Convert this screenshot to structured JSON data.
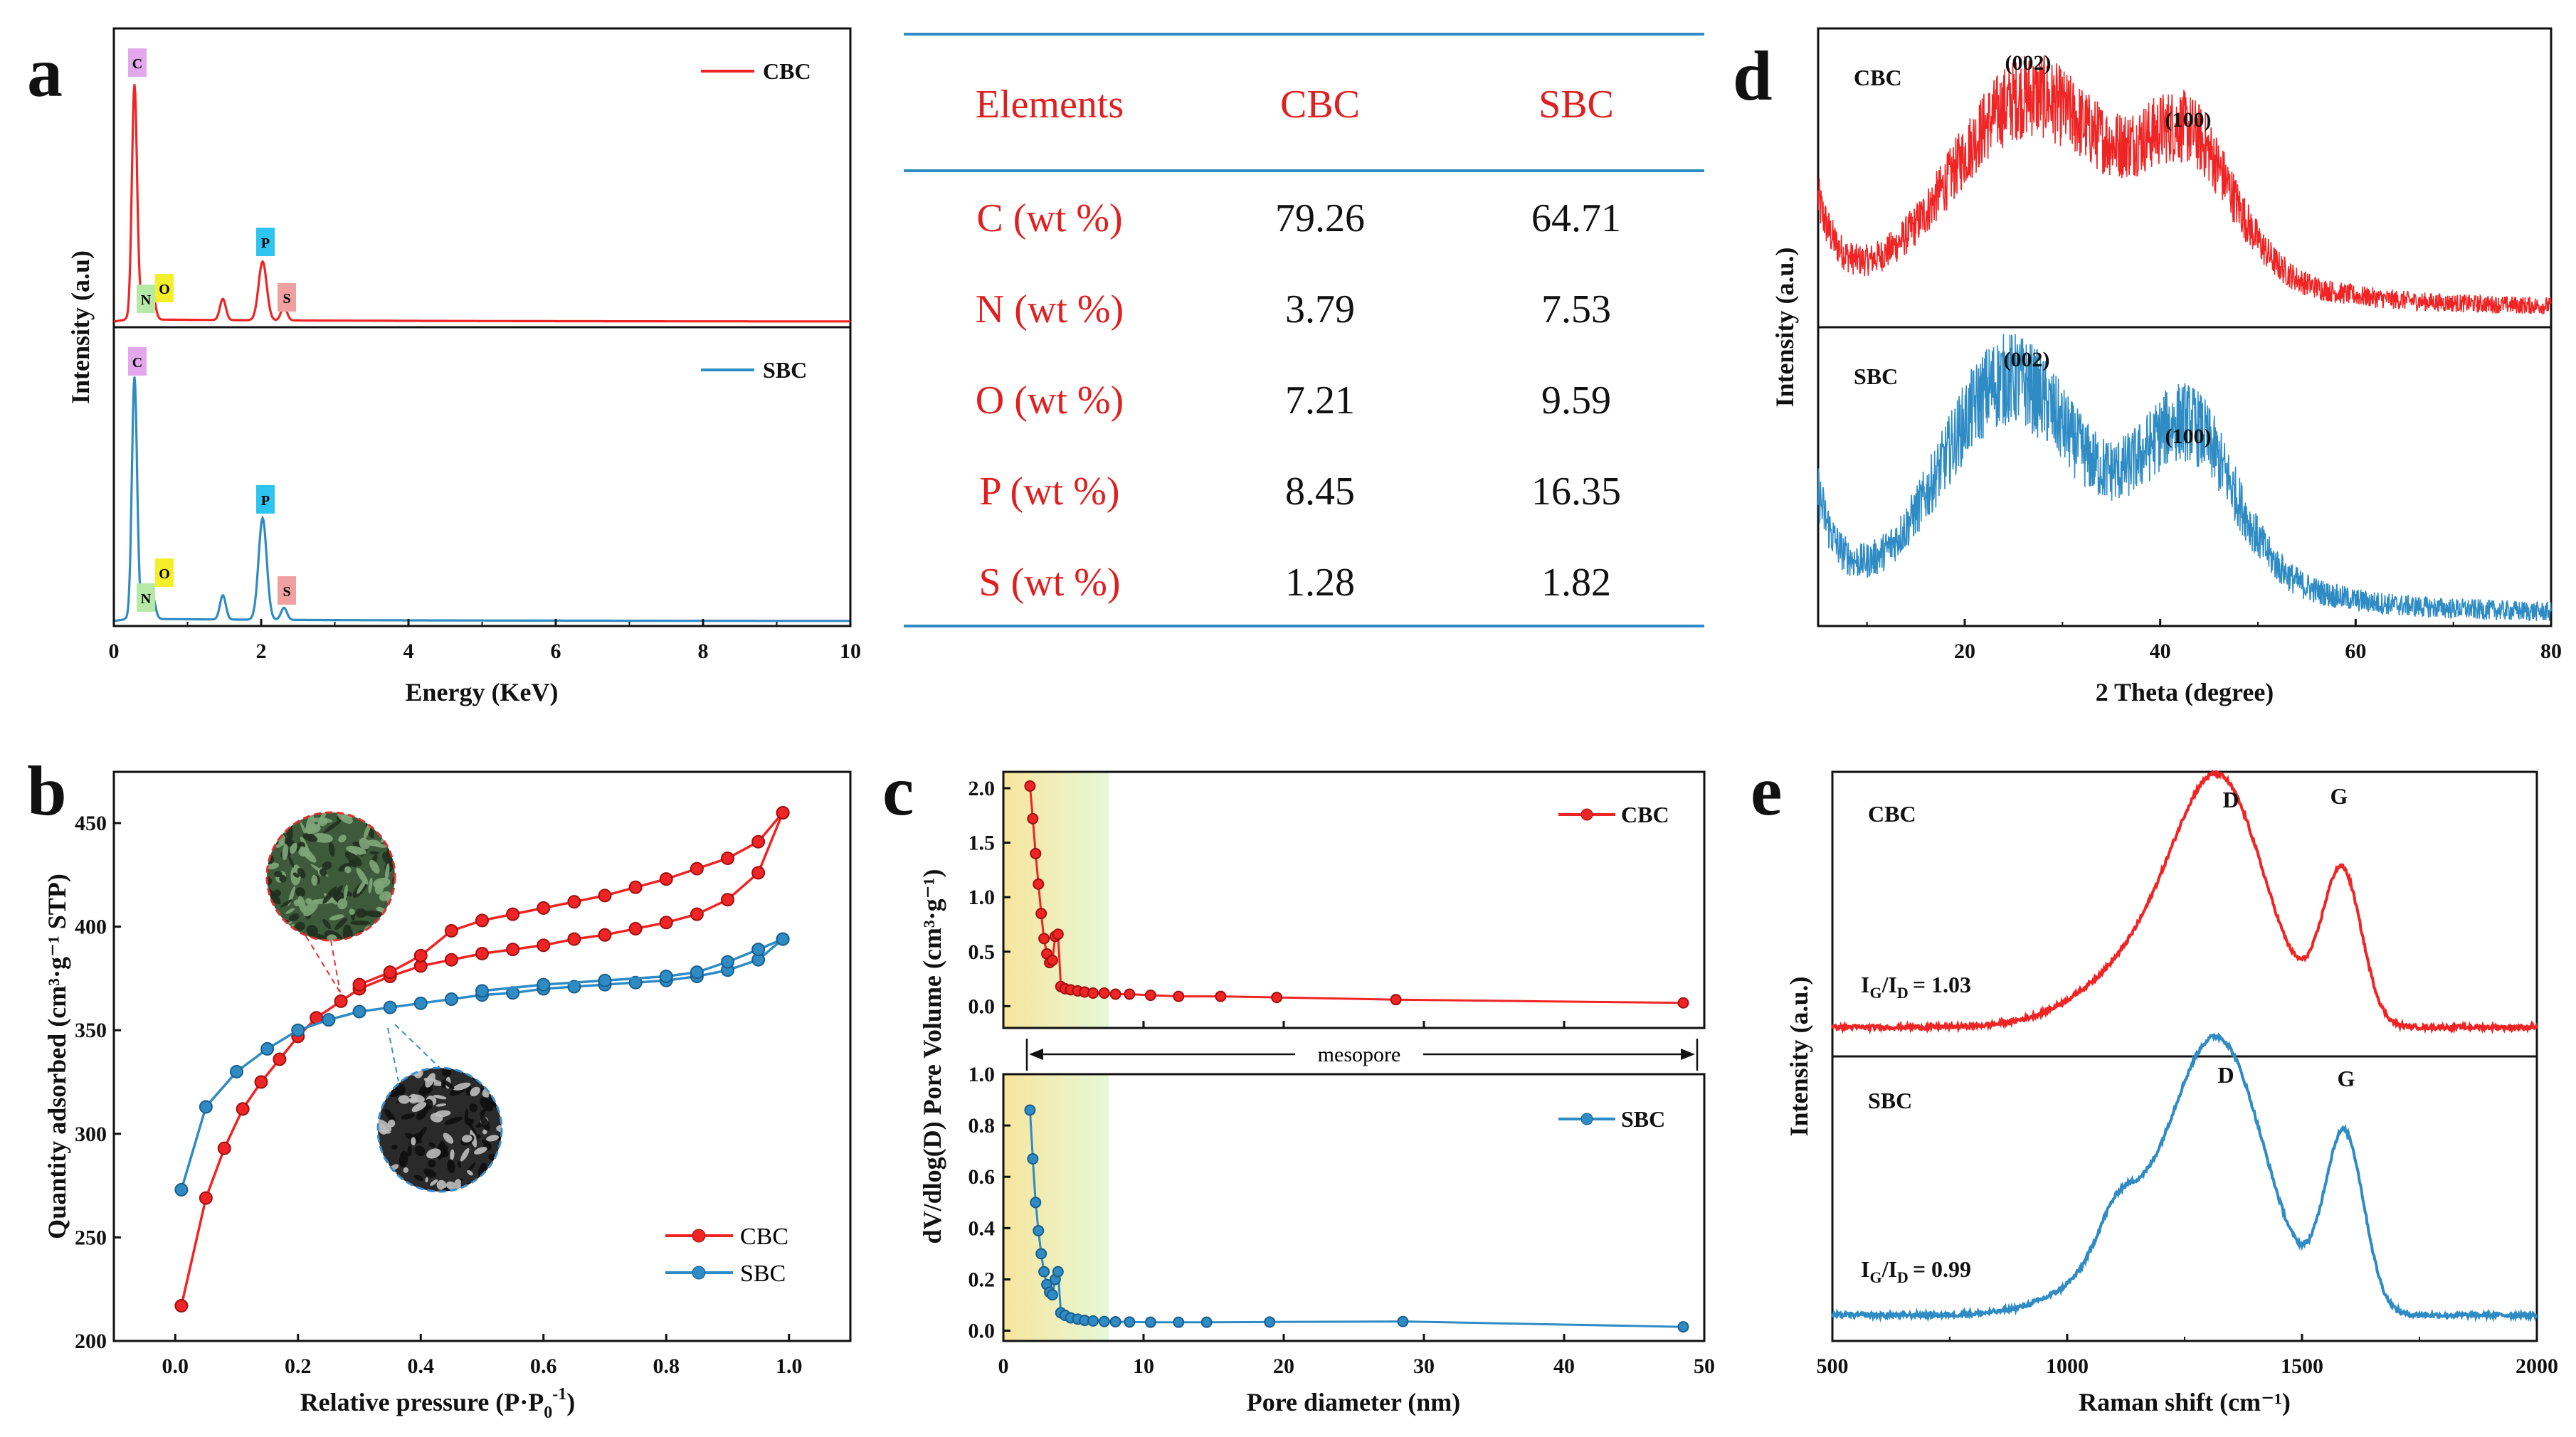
{
  "colors": {
    "cbc": "#f02424",
    "sbc": "#2e8bc4",
    "table_red": "#e02020",
    "rule": "#2e8bc4"
  },
  "panels": {
    "a": {
      "label": "a",
      "xlabel": "Energy (KeV)",
      "ylabel": "Intensity (a.u)",
      "xlim": [
        0,
        10
      ],
      "xticks": [
        "0",
        "2",
        "4",
        "6",
        "8",
        "10"
      ],
      "legend_cbc": "CBC",
      "legend_sbc": "SBC",
      "element_tags": [
        "C",
        "N",
        "O",
        "P",
        "S"
      ]
    },
    "table": {
      "headers": [
        "Elements",
        "CBC",
        "SBC"
      ],
      "rows": [
        [
          "C (wt %)",
          "79.26",
          "64.71"
        ],
        [
          "N (wt %)",
          "3.79",
          "7.53"
        ],
        [
          "O (wt %)",
          "7.21",
          "9.59"
        ],
        [
          "P (wt %)",
          "8.45",
          "16.35"
        ],
        [
          "S (wt %)",
          "1.28",
          "1.82"
        ]
      ]
    },
    "d": {
      "label": "d",
      "xlabel": "2 Theta (degree)",
      "ylabel": "Intensity (a.u.)",
      "xticks": [
        "20",
        "40",
        "60",
        "80"
      ],
      "cbc": "CBC",
      "sbc": "SBC",
      "peak1": "(002)",
      "peak2": "(100)"
    },
    "b": {
      "label": "b",
      "xlabel": "Relative pressure (P·P",
      "xlabel_sub": "0",
      "xlabel_sup": "-1",
      "xlabel_end": ")",
      "ylabel": "Quantity adsorbed (cm³·g⁻¹ STP)",
      "xticks": [
        "0.0",
        "0.2",
        "0.4",
        "0.6",
        "0.8",
        "1.0"
      ],
      "yticks": [
        "200",
        "250",
        "300",
        "350",
        "400",
        "450"
      ],
      "legend_cbc": "CBC",
      "legend_sbc": "SBC"
    },
    "c": {
      "label": "c",
      "xlabel": "Pore diameter (nm)",
      "ylabel": "dV/dlog(D) Pore Volume (cm³·g⁻¹)",
      "xticks": [
        "0",
        "10",
        "20",
        "30",
        "40",
        "50"
      ],
      "yticks_top": [
        "0.0",
        "0.5",
        "1.0",
        "1.5",
        "2.0"
      ],
      "yticks_bottom": [
        "0.0",
        "0.2",
        "0.4",
        "0.6",
        "0.8",
        "1.0"
      ],
      "legend_cbc": "CBC",
      "legend_sbc": "SBC",
      "mesopore": "mesopore"
    },
    "e": {
      "label": "e",
      "xlabel": "Raman shift (cm⁻¹)",
      "ylabel": "Intensity (a.u.)",
      "xticks": [
        "500",
        "1000",
        "1500",
        "2000"
      ],
      "cbc": "CBC",
      "sbc": "SBC",
      "d_peak": "D",
      "g_peak": "G",
      "ratio_cbc": "= 1.03",
      "ratio_sbc": "= 0.99",
      "ratio_prefix": "I",
      "ratio_g": "G",
      "ratio_sep": "/I",
      "ratio_d": "D"
    }
  },
  "chart_data": [
    {
      "panel": "a",
      "type": "line",
      "title": "",
      "xlabel": "Energy (KeV)",
      "ylabel": "Intensity (a.u)",
      "xlim": [
        0,
        10
      ],
      "series": [
        {
          "name": "CBC",
          "peaks": [
            {
              "x": 0.28,
              "y": 1.0
            },
            {
              "x": 0.39,
              "y": 0.08
            },
            {
              "x": 0.52,
              "y": 0.12
            },
            {
              "x": 1.48,
              "y": 0.09
            },
            {
              "x": 2.02,
              "y": 0.25
            },
            {
              "x": 2.31,
              "y": 0.06
            }
          ]
        },
        {
          "name": "SBC",
          "peaks": [
            {
              "x": 0.28,
              "y": 1.0
            },
            {
              "x": 0.39,
              "y": 0.05
            },
            {
              "x": 0.52,
              "y": 0.1
            },
            {
              "x": 1.48,
              "y": 0.1
            },
            {
              "x": 2.02,
              "y": 0.42
            },
            {
              "x": 2.31,
              "y": 0.05
            }
          ]
        }
      ]
    },
    {
      "panel": "b",
      "type": "line",
      "xlabel": "Relative pressure (P·P0-1)",
      "ylabel": "Quantity adsorbed (cm3·g-1 STP)",
      "xlim": [
        -0.1,
        1.1
      ],
      "ylim": [
        200,
        470
      ],
      "series": [
        {
          "name": "CBC adsorption",
          "x": [
            0.01,
            0.05,
            0.08,
            0.11,
            0.14,
            0.17,
            0.2,
            0.23,
            0.27,
            0.3,
            0.35,
            0.4,
            0.45,
            0.5,
            0.55,
            0.6,
            0.65,
            0.7,
            0.75,
            0.8,
            0.85,
            0.9,
            0.95,
            0.99
          ],
          "y": [
            217,
            269,
            293,
            312,
            325,
            336,
            347,
            356,
            364,
            370,
            376,
            381,
            384,
            387,
            389,
            391,
            394,
            396,
            399,
            402,
            406,
            413,
            426,
            455
          ]
        },
        {
          "name": "CBC desorption",
          "x": [
            0.99,
            0.95,
            0.9,
            0.85,
            0.8,
            0.75,
            0.7,
            0.65,
            0.6,
            0.55,
            0.5,
            0.45,
            0.4,
            0.35,
            0.3
          ],
          "y": [
            455,
            441,
            433,
            428,
            423,
            419,
            415,
            412,
            409,
            406,
            403,
            398,
            386,
            378,
            372
          ]
        },
        {
          "name": "SBC adsorption",
          "x": [
            0.01,
            0.05,
            0.1,
            0.15,
            0.2,
            0.25,
            0.3,
            0.35,
            0.4,
            0.45,
            0.5,
            0.55,
            0.6,
            0.65,
            0.7,
            0.75,
            0.8,
            0.85,
            0.9,
            0.95,
            0.99
          ],
          "y": [
            273,
            313,
            330,
            341,
            350,
            355,
            359,
            361,
            363,
            365,
            367,
            368,
            370,
            371,
            372,
            373,
            374,
            376,
            379,
            384,
            394
          ]
        },
        {
          "name": "SBC desorption",
          "x": [
            0.99,
            0.95,
            0.9,
            0.85,
            0.8,
            0.7,
            0.6,
            0.5
          ],
          "y": [
            394,
            389,
            383,
            378,
            376,
            374,
            372,
            369
          ]
        }
      ]
    },
    {
      "panel": "c",
      "type": "line",
      "xlabel": "Pore diameter (nm)",
      "ylabel": "dV/dlog(D) Pore Volume (cm3·g-1)",
      "xlim": [
        0,
        50
      ],
      "series": [
        {
          "name": "CBC",
          "ylim": [
            -0.2,
            2.15
          ],
          "x": [
            1.9,
            2.1,
            2.3,
            2.5,
            2.7,
            2.9,
            3.1,
            3.3,
            3.5,
            3.7,
            3.9,
            4.1,
            4.4,
            4.8,
            5.3,
            5.8,
            6.4,
            7.2,
            8.0,
            9.0,
            10.5,
            12.5,
            15.5,
            19.5,
            28.0,
            48.5
          ],
          "y": [
            2.02,
            1.72,
            1.4,
            1.12,
            0.85,
            0.62,
            0.48,
            0.4,
            0.42,
            0.64,
            0.66,
            0.18,
            0.16,
            0.15,
            0.14,
            0.13,
            0.12,
            0.12,
            0.11,
            0.11,
            0.1,
            0.09,
            0.09,
            0.08,
            0.06,
            0.03
          ]
        },
        {
          "name": "SBC",
          "ylim": [
            -0.04,
            1.0
          ],
          "x": [
            1.9,
            2.1,
            2.3,
            2.5,
            2.7,
            2.9,
            3.1,
            3.3,
            3.5,
            3.7,
            3.9,
            4.1,
            4.4,
            4.8,
            5.3,
            5.8,
            6.4,
            7.2,
            8.0,
            9.0,
            10.5,
            12.5,
            14.5,
            19.0,
            28.5,
            48.5
          ],
          "y": [
            0.86,
            0.67,
            0.5,
            0.39,
            0.3,
            0.23,
            0.18,
            0.15,
            0.14,
            0.2,
            0.23,
            0.07,
            0.06,
            0.05,
            0.045,
            0.04,
            0.038,
            0.036,
            0.035,
            0.034,
            0.033,
            0.033,
            0.033,
            0.034,
            0.036,
            0.015
          ]
        }
      ]
    },
    {
      "panel": "d",
      "type": "line",
      "xlabel": "2 Theta (degree)",
      "ylabel": "Intensity (a.u.)",
      "xlim": [
        5,
        80
      ],
      "series": [
        {
          "name": "CBC",
          "features": [
            {
              "label": "(002)",
              "x": 26
            },
            {
              "label": "(100)",
              "x": 43
            }
          ]
        },
        {
          "name": "SBC",
          "features": [
            {
              "label": "(002)",
              "x": 24
            },
            {
              "label": "(100)",
              "x": 43
            }
          ]
        }
      ]
    },
    {
      "panel": "e",
      "type": "line",
      "xlabel": "Raman shift (cm-1)",
      "ylabel": "Intensity (a.u.)",
      "xlim": [
        500,
        2000
      ],
      "series": [
        {
          "name": "CBC",
          "ratio_IG_ID": 1.03,
          "D_peak": 1340,
          "G_peak": 1585
        },
        {
          "name": "SBC",
          "ratio_IG_ID": 0.99,
          "D_peak": 1340,
          "G_peak": 1590
        }
      ]
    }
  ]
}
